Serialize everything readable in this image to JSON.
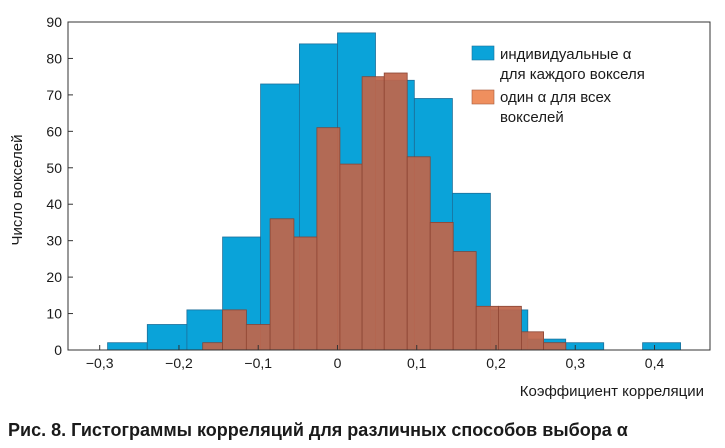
{
  "chart_data": {
    "type": "bar",
    "xlabel": "Коэффициент корреляции",
    "ylabel": "Число вокселей",
    "xlim": [
      -0.34,
      0.47
    ],
    "ylim": [
      0,
      90
    ],
    "x_ticks": [
      "−0,3",
      "−0,2",
      "−0,1",
      "0",
      "0,1",
      "0,2",
      "0,3",
      "0,4"
    ],
    "y_ticks": [
      "0",
      "10",
      "20",
      "30",
      "40",
      "50",
      "60",
      "70",
      "80",
      "90"
    ],
    "legend_position": "top-right",
    "series": [
      {
        "name": "индивидуальные α для каждого вокселя",
        "color": "#0aa3d9",
        "bins": [
          {
            "x0": -0.29,
            "x1": -0.24,
            "value": 2
          },
          {
            "x0": -0.24,
            "x1": -0.19,
            "value": 7
          },
          {
            "x0": -0.19,
            "x1": -0.145,
            "value": 11
          },
          {
            "x0": -0.145,
            "x1": -0.097,
            "value": 31
          },
          {
            "x0": -0.097,
            "x1": -0.048,
            "value": 73
          },
          {
            "x0": -0.048,
            "x1": 0.0,
            "value": 84
          },
          {
            "x0": 0.0,
            "x1": 0.048,
            "value": 87
          },
          {
            "x0": 0.048,
            "x1": 0.097,
            "value": 74
          },
          {
            "x0": 0.097,
            "x1": 0.145,
            "value": 69
          },
          {
            "x0": 0.145,
            "x1": 0.193,
            "value": 43
          },
          {
            "x0": 0.193,
            "x1": 0.24,
            "value": 11
          },
          {
            "x0": 0.24,
            "x1": 0.288,
            "value": 3
          },
          {
            "x0": 0.288,
            "x1": 0.336,
            "value": 2
          },
          {
            "x0": 0.385,
            "x1": 0.433,
            "value": 2
          }
        ]
      },
      {
        "name": "один α для всех вокселей",
        "color": "#ef8f5e",
        "bins": [
          {
            "x0": -0.17,
            "x1": -0.145,
            "value": 2
          },
          {
            "x0": -0.145,
            "x1": -0.115,
            "value": 11
          },
          {
            "x0": -0.115,
            "x1": -0.085,
            "value": 7
          },
          {
            "x0": -0.085,
            "x1": -0.055,
            "value": 36
          },
          {
            "x0": -0.055,
            "x1": -0.026,
            "value": 31
          },
          {
            "x0": -0.026,
            "x1": 0.003,
            "value": 61
          },
          {
            "x0": 0.003,
            "x1": 0.031,
            "value": 51
          },
          {
            "x0": 0.031,
            "x1": 0.059,
            "value": 75
          },
          {
            "x0": 0.059,
            "x1": 0.088,
            "value": 76
          },
          {
            "x0": 0.088,
            "x1": 0.117,
            "value": 53
          },
          {
            "x0": 0.117,
            "x1": 0.146,
            "value": 35
          },
          {
            "x0": 0.146,
            "x1": 0.175,
            "value": 27
          },
          {
            "x0": 0.175,
            "x1": 0.203,
            "value": 12
          },
          {
            "x0": 0.203,
            "x1": 0.232,
            "value": 12
          },
          {
            "x0": 0.232,
            "x1": 0.26,
            "value": 5
          },
          {
            "x0": 0.26,
            "x1": 0.288,
            "value": 2
          }
        ]
      }
    ],
    "legend": [
      {
        "line1": "индивидуальные α",
        "line2": "для каждого вокселя"
      },
      {
        "line1": "один α для всех",
        "line2": "вокселей"
      }
    ]
  },
  "caption": "Рис. 8. Гистограммы корреляций для различных способов выбора α"
}
